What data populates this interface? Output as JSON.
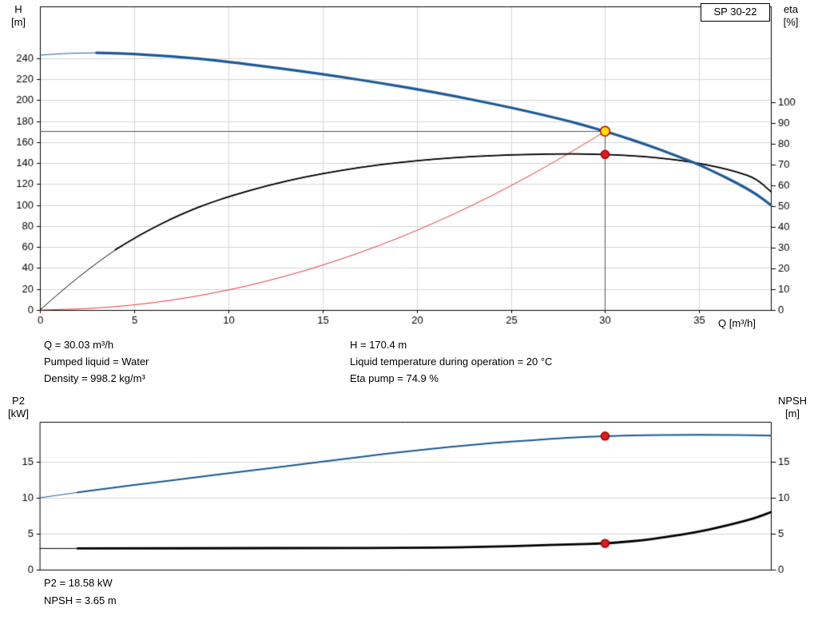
{
  "page": {
    "background": "#ffffff",
    "accent_blue": "#1d5a96",
    "accent_red": "#dd2222"
  },
  "chart_data": [
    {
      "type": "line",
      "badge": "SP 30-22",
      "left_axis": {
        "label": "H",
        "unit": "[m]",
        "ticks": [
          0,
          20,
          40,
          60,
          80,
          100,
          120,
          140,
          160,
          180,
          200,
          220,
          240
        ],
        "range": [
          0,
          289.5
        ]
      },
      "right_axis": {
        "label": "eta",
        "unit": "[%]",
        "ticks": [
          0,
          10,
          20,
          30,
          40,
          50,
          60,
          70,
          80,
          90,
          100
        ],
        "range": [
          0,
          146.2
        ]
      },
      "x_axis": {
        "label": "Q [m³/h]",
        "ticks": [
          0,
          5,
          10,
          15,
          20,
          25,
          30,
          35
        ],
        "range": [
          0,
          38.8
        ]
      },
      "grid": true,
      "series": [
        {
          "name": "system-curve",
          "axis": "left",
          "color": "#dd2222",
          "width": 0.9,
          "points": [
            [
              0,
              0
            ],
            [
              2,
              0.8
            ],
            [
              4,
              3.0
            ],
            [
              6,
              6.8
            ],
            [
              8,
              12.1
            ],
            [
              10,
              18.9
            ],
            [
              12,
              27.3
            ],
            [
              14,
              37.1
            ],
            [
              16,
              48.5
            ],
            [
              18,
              61.3
            ],
            [
              20,
              75.7
            ],
            [
              22,
              91.6
            ],
            [
              24,
              109.0
            ],
            [
              26,
              128.0
            ],
            [
              28,
              148.4
            ],
            [
              30,
              170.4
            ]
          ]
        },
        {
          "name": "efficiency-curve",
          "axis": "right",
          "color": "#000000",
          "width": 1.8,
          "thin_until": 4,
          "points": [
            [
              0,
              0
            ],
            [
              1,
              8
            ],
            [
              2,
              15.5
            ],
            [
              3,
              22.5
            ],
            [
              4,
              29
            ],
            [
              5,
              34.5
            ],
            [
              6,
              39.5
            ],
            [
              7,
              44
            ],
            [
              8,
              48
            ],
            [
              9,
              51.5
            ],
            [
              10,
              54.5
            ],
            [
              12,
              59.8
            ],
            [
              14,
              64
            ],
            [
              16,
              67.3
            ],
            [
              18,
              70
            ],
            [
              20,
              71.9
            ],
            [
              22,
              73.4
            ],
            [
              24,
              74.4
            ],
            [
              26,
              75
            ],
            [
              28,
              75.2
            ],
            [
              29,
              75.1
            ],
            [
              30,
              74.9
            ],
            [
              31,
              74.5
            ],
            [
              32,
              73.9
            ],
            [
              33,
              73.1
            ],
            [
              34,
              72
            ],
            [
              35,
              70.6
            ],
            [
              36,
              68.8
            ],
            [
              37,
              66.5
            ],
            [
              38,
              63.5
            ],
            [
              38.8,
              57
            ]
          ]
        },
        {
          "name": "head-curve",
          "axis": "left",
          "color": "#1d5a96",
          "width": 3.2,
          "thin_until": 3,
          "points": [
            [
              0,
              243
            ],
            [
              1,
              244.3
            ],
            [
              2,
              245
            ],
            [
              3,
              245.2
            ],
            [
              4,
              244.8
            ],
            [
              5,
              244
            ],
            [
              6,
              243
            ],
            [
              7,
              241.8
            ],
            [
              8,
              240.3
            ],
            [
              9,
              238.6
            ],
            [
              10,
              236.6
            ],
            [
              12,
              232.2
            ],
            [
              14,
              227.4
            ],
            [
              16,
              222.2
            ],
            [
              18,
              216.6
            ],
            [
              20,
              210.6
            ],
            [
              22,
              204
            ],
            [
              24,
              196.8
            ],
            [
              26,
              189
            ],
            [
              28,
              180.4
            ],
            [
              29,
              175.6
            ],
            [
              30,
              170.4
            ],
            [
              31,
              164.8
            ],
            [
              32,
              158.8
            ],
            [
              33,
              152.4
            ],
            [
              34,
              145.6
            ],
            [
              35,
              138.4
            ],
            [
              36,
              130
            ],
            [
              37,
              121
            ],
            [
              38,
              111
            ],
            [
              38.8,
              100
            ]
          ]
        }
      ],
      "crosshair": {
        "q": 30,
        "value": 170.4,
        "axis": "left"
      },
      "markers": [
        {
          "q": 30,
          "value": 170.4,
          "axis": "left",
          "fill": "#ffdd00",
          "stroke": "#b00000",
          "r": 6
        },
        {
          "q": 30,
          "value": 74.9,
          "axis": "right",
          "fill": "#e31a1c",
          "stroke": "#9c0000",
          "r": 5
        }
      ],
      "info_columns": [
        [
          "Q = 30.03 m³/h",
          "Pumped liquid = Water",
          "Density = 998.2 kg/m³"
        ],
        [
          "H = 170.4 m",
          "Liquid temperature during operation = 20 °C",
          "Eta pump = 74.9 %"
        ]
      ]
    },
    {
      "type": "line",
      "left_axis": {
        "label": "P2",
        "unit": "[kW]",
        "ticks": [
          0,
          5,
          10,
          15
        ],
        "range": [
          0,
          20.56
        ]
      },
      "right_axis": {
        "label": "NPSH",
        "unit": "[m]",
        "ticks": [
          0,
          5,
          10,
          15
        ],
        "range": [
          0,
          20.56
        ]
      },
      "x_axis": {
        "label": "",
        "ticks": [],
        "range": [
          0,
          38.8
        ]
      },
      "grid": true,
      "series": [
        {
          "name": "p2-curve",
          "axis": "left",
          "color": "#1d5a96",
          "width": 2.0,
          "thin_until": 2,
          "points": [
            [
              0,
              10
            ],
            [
              2,
              10.75
            ],
            [
              4,
              11.45
            ],
            [
              6,
              12.1
            ],
            [
              8,
              12.75
            ],
            [
              10,
              13.4
            ],
            [
              12,
              14.05
            ],
            [
              14,
              14.7
            ],
            [
              16,
              15.35
            ],
            [
              18,
              16
            ],
            [
              20,
              16.6
            ],
            [
              22,
              17.15
            ],
            [
              24,
              17.6
            ],
            [
              26,
              18
            ],
            [
              28,
              18.35
            ],
            [
              30,
              18.58
            ],
            [
              32,
              18.7
            ],
            [
              34,
              18.75
            ],
            [
              36,
              18.75
            ],
            [
              38,
              18.7
            ],
            [
              38.8,
              18.65
            ]
          ]
        },
        {
          "name": "npsh-curve",
          "axis": "right",
          "color": "#000000",
          "width": 2.8,
          "thin_until": 2,
          "points": [
            [
              0,
              2.95
            ],
            [
              2,
              2.95
            ],
            [
              5,
              2.95
            ],
            [
              10,
              3
            ],
            [
              15,
              3
            ],
            [
              20,
              3.05
            ],
            [
              22,
              3.1
            ],
            [
              24,
              3.2
            ],
            [
              26,
              3.35
            ],
            [
              28,
              3.5
            ],
            [
              30,
              3.65
            ],
            [
              31,
              3.85
            ],
            [
              32,
              4.1
            ],
            [
              33,
              4.45
            ],
            [
              34,
              4.85
            ],
            [
              35,
              5.3
            ],
            [
              36,
              5.85
            ],
            [
              37,
              6.5
            ],
            [
              38,
              7.2
            ],
            [
              38.8,
              8
            ]
          ]
        }
      ],
      "markers": [
        {
          "q": 30,
          "value": 18.58,
          "axis": "left",
          "fill": "#e31a1c",
          "stroke": "#9c0000",
          "r": 5
        },
        {
          "q": 30,
          "value": 3.65,
          "axis": "right",
          "fill": "#e31a1c",
          "stroke": "#9c0000",
          "r": 5
        }
      ],
      "info_lines": [
        "P2 = 18.58 kW",
        "NPSH = 3.65 m"
      ]
    }
  ]
}
